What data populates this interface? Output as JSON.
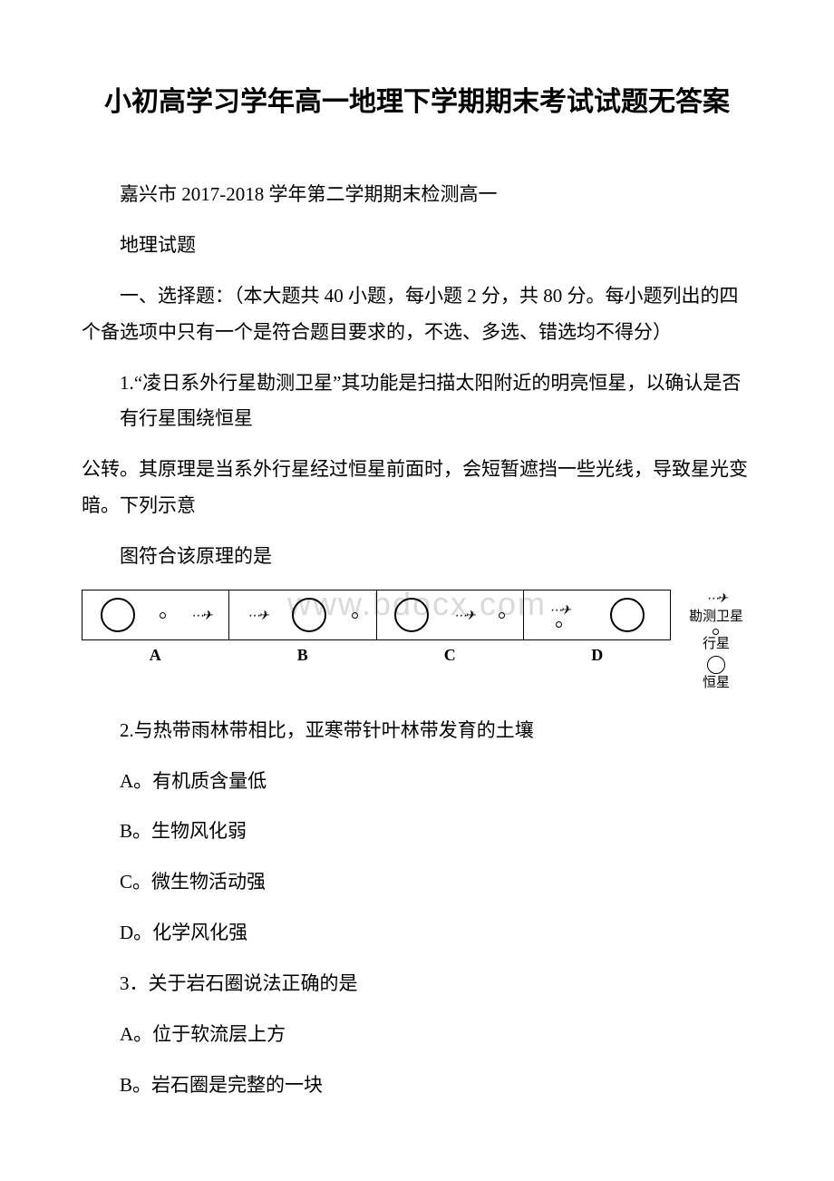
{
  "title": "小初高学习学年高一地理下学期期末考试试题无答案",
  "subtitle_line1": "嘉兴市 2017-2018 学年第二学期期末检测高一",
  "subtitle_line2": "地理试题",
  "section1": "一、选择题：（本大题共 40 小题，每小题 2 分，共 80 分。每小题列出的四个备选项中只有一个是符合题目要求的，不选、多选、错选均不得分）",
  "q1_p1": "1.“凌日系外行星勘测卫星”其功能是扫描太阳附近的明亮恒星，以确认是否有行星围绕恒星",
  "q1_p2": "公转。其原理是当系外行星经过恒星前面时，会短暂遮挡一些光线，导致星光变暗。下列示意",
  "q1_p3": "图符合该原理的是",
  "diagram": {
    "labels": [
      "A",
      "B",
      "C",
      "D"
    ],
    "legend": {
      "sat": "勘测卫星",
      "planet": "行星",
      "star": "恒星"
    },
    "satellite_glyph": "✈"
  },
  "q2": "2.与热带雨林带相比，亚寒带针叶林带发育的土壤",
  "q2a": "A。有机质含量低",
  "q2b": "B。生物风化弱",
  "q2c": "C。微生物活动强",
  "q2d": "D。化学风化强",
  "q3": "3．关于岩石圈说法正确的是",
  "q3a": "A。位于软流层上方",
  "q3b": "B。岩石圈是完整的一块",
  "watermark": "www.bdocx.com"
}
